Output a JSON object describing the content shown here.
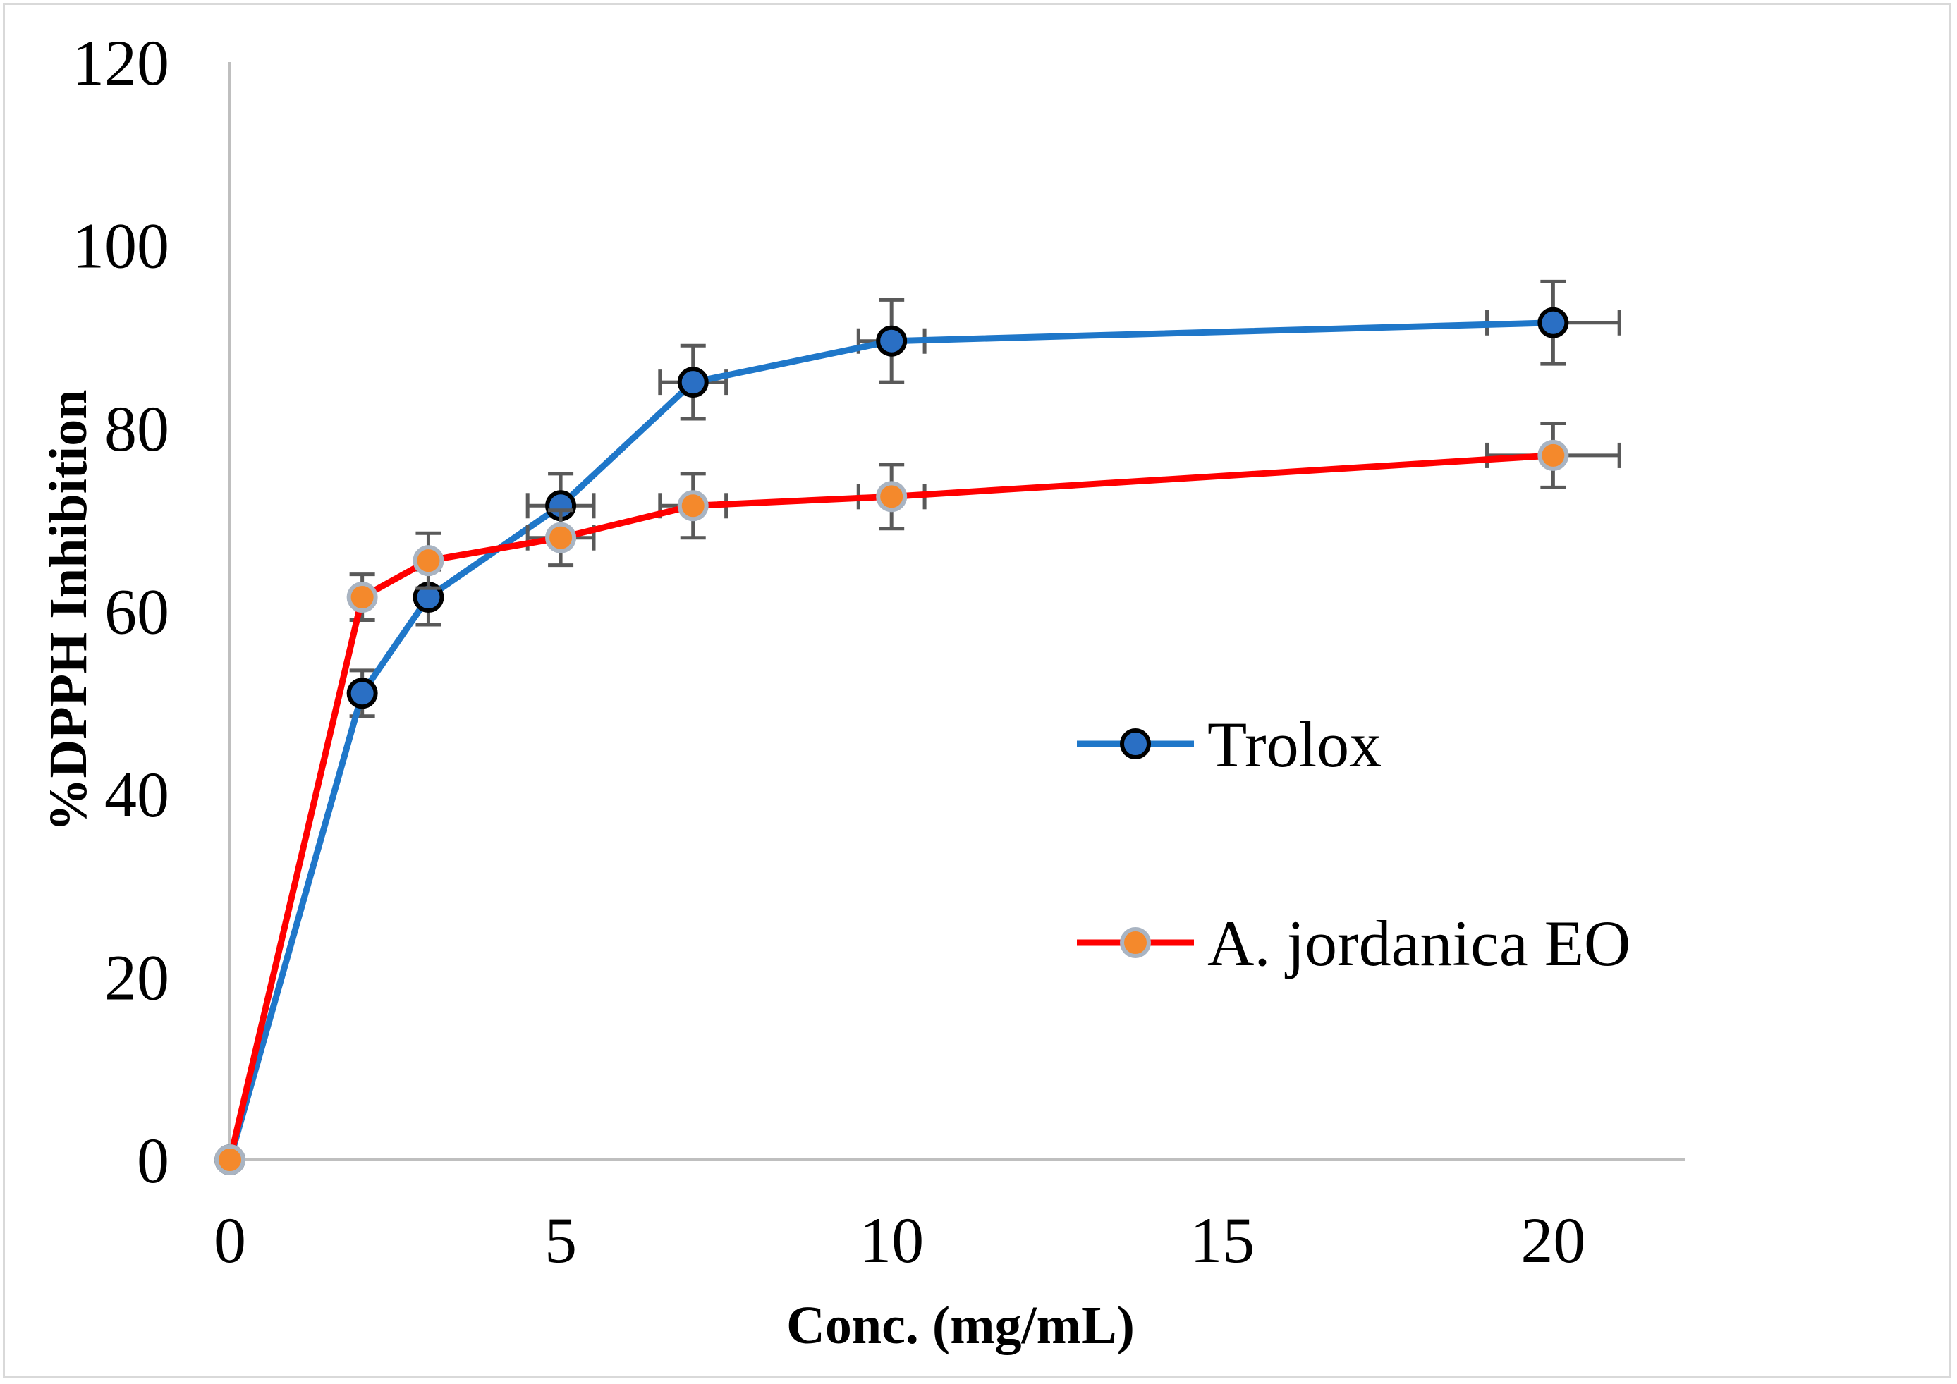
{
  "chart_data": {
    "type": "line",
    "xlabel": "Conc. (mg/mL)",
    "ylabel": "%DPPH  Inhibition",
    "xlim": [
      0,
      22
    ],
    "ylim": [
      0,
      120
    ],
    "x_ticks": [
      0,
      5,
      10,
      15,
      20
    ],
    "y_ticks": [
      0,
      20,
      40,
      60,
      80,
      100,
      120
    ],
    "grid": false,
    "legend_position": "right",
    "series": [
      {
        "name": "Trolox",
        "line_color": "#1f77c9",
        "marker_fill": "#2a6fc4",
        "marker_edge": "#000000",
        "points": [
          {
            "x": 0,
            "y": 0,
            "yerr": 0,
            "xerr": 0
          },
          {
            "x": 2,
            "y": 51,
            "yerr": 2.5,
            "xerr": 0
          },
          {
            "x": 3,
            "y": 61.5,
            "yerr": 3,
            "xerr": 0
          },
          {
            "x": 5,
            "y": 71.5,
            "yerr": 3.5,
            "xerr": 0.5
          },
          {
            "x": 7,
            "y": 85,
            "yerr": 4,
            "xerr": 0.5
          },
          {
            "x": 10,
            "y": 89.5,
            "yerr": 4.5,
            "xerr": 0.5
          },
          {
            "x": 20,
            "y": 91.5,
            "yerr": 4.5,
            "xerr": 1
          }
        ]
      },
      {
        "name": "A. jordanica EO",
        "line_color": "#ff0000",
        "marker_fill": "#f4892c",
        "marker_edge": "#a9b4c2",
        "points": [
          {
            "x": 0,
            "y": 0,
            "yerr": 0,
            "xerr": 0
          },
          {
            "x": 2,
            "y": 61.5,
            "yerr": 2.5,
            "xerr": 0
          },
          {
            "x": 3,
            "y": 65.5,
            "yerr": 3,
            "xerr": 0
          },
          {
            "x": 5,
            "y": 68,
            "yerr": 3,
            "xerr": 0.5
          },
          {
            "x": 7,
            "y": 71.5,
            "yerr": 3.5,
            "xerr": 0.5
          },
          {
            "x": 10,
            "y": 72.5,
            "yerr": 3.5,
            "xerr": 0.5
          },
          {
            "x": 20,
            "y": 77,
            "yerr": 3.5,
            "xerr": 1
          }
        ]
      }
    ]
  },
  "colors": {
    "axis": "#bfbfbf",
    "error_bar": "#595959",
    "frame_border": "#d9d9d9"
  }
}
